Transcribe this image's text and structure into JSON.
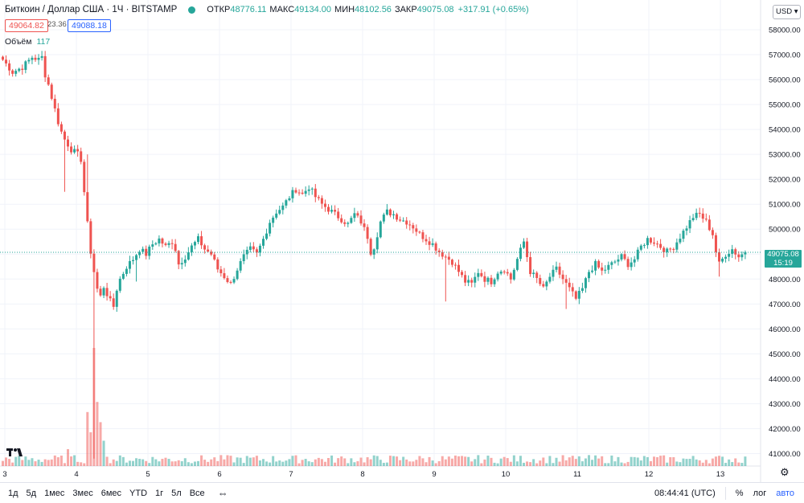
{
  "legend": {
    "symbol": "Биткоин / Доллар США · 1Ч · BITSTAMP",
    "status_color": "#26a69a",
    "open_label": "ОТКР",
    "open": "48776.11",
    "high_label": "МАКС",
    "high": "49134.00",
    "low_label": "МИН",
    "low": "48102.56",
    "close_label": "ЗАКР",
    "close": "49075.08",
    "change": "+317.91 (+0.65%)"
  },
  "bid": "49064.82",
  "spread": "23.36",
  "ask": "49088.18",
  "volume": {
    "label": "Объём",
    "value": "117"
  },
  "currency": "USD",
  "last_price": {
    "value": "49075.08",
    "countdown": "15:19"
  },
  "colors": {
    "up": "#26a69a",
    "down": "#ef5350",
    "bid": "#ef5350",
    "ask": "#2962ff"
  },
  "bottom_bar": {
    "ranges": [
      "1д",
      "5д",
      "1мес",
      "3мес",
      "6мес",
      "YTD",
      "1г",
      "5л",
      "Все"
    ],
    "time": "08:44:41 (UTC)",
    "percent": "%",
    "log": "лог",
    "auto": "авто"
  },
  "chart_data": {
    "type": "candlestick",
    "interval": "1H",
    "ylim": [
      40500,
      59000
    ],
    "y_ticks": [
      41000,
      42000,
      43000,
      44000,
      45000,
      46000,
      47000,
      48000,
      49000,
      50000,
      51000,
      52000,
      53000,
      54000,
      55000,
      56000,
      57000,
      58000
    ],
    "y_tick_labels": [
      "41000.00",
      "42000.00",
      "43000.00",
      "44000.00",
      "45000.00",
      "46000.00",
      "47000.00",
      "48000.00",
      "49000.00",
      "50000.00",
      "51000.00",
      "52000.00",
      "53000.00",
      "54000.00",
      "55000.00",
      "56000.00",
      "57000.00",
      "58000.00"
    ],
    "x_ticks": [
      {
        "label": "3",
        "day": 3
      },
      {
        "label": "4",
        "day": 4
      },
      {
        "label": "5",
        "day": 5
      },
      {
        "label": "6",
        "day": 6
      },
      {
        "label": "7",
        "day": 7
      },
      {
        "label": "8",
        "day": 8
      },
      {
        "label": "9",
        "day": 9
      },
      {
        "label": "10",
        "day": 10
      },
      {
        "label": "11",
        "day": 11
      },
      {
        "label": "12",
        "day": 12
      },
      {
        "label": "13",
        "day": 13
      }
    ],
    "last_price": 49075.08,
    "path": [
      [
        0,
        56800
      ],
      [
        3,
        56300
      ],
      [
        6,
        56500
      ],
      [
        9,
        56900
      ],
      [
        11,
        56800
      ],
      [
        12,
        56900
      ],
      [
        13,
        56200
      ],
      [
        14,
        55800
      ],
      [
        15,
        55300
      ],
      [
        16,
        54800
      ],
      [
        17,
        54300
      ],
      [
        18,
        53900
      ],
      [
        19,
        53600
      ],
      [
        20,
        53400
      ],
      [
        21,
        53200
      ],
      [
        22,
        53100
      ],
      [
        23,
        53000
      ],
      [
        24,
        52800
      ],
      [
        25,
        51500
      ],
      [
        26,
        50200
      ],
      [
        27,
        49100
      ],
      [
        28,
        48300
      ],
      [
        29,
        47600
      ],
      [
        30,
        47300
      ],
      [
        31,
        47700
      ],
      [
        32,
        47400
      ],
      [
        33,
        47100
      ],
      [
        34,
        46900
      ],
      [
        35,
        47600
      ],
      [
        36,
        48000
      ],
      [
        38,
        48500
      ],
      [
        40,
        48800
      ],
      [
        42,
        49200
      ],
      [
        44,
        49000
      ],
      [
        46,
        49400
      ],
      [
        48,
        49600
      ],
      [
        50,
        49300
      ],
      [
        52,
        49500
      ],
      [
        53,
        49200
      ],
      [
        54,
        48600
      ],
      [
        56,
        48900
      ],
      [
        58,
        49300
      ],
      [
        60,
        49600
      ],
      [
        62,
        49200
      ],
      [
        64,
        49000
      ],
      [
        66,
        48400
      ],
      [
        68,
        48100
      ],
      [
        70,
        47800
      ],
      [
        72,
        48400
      ],
      [
        74,
        48900
      ],
      [
        76,
        49200
      ],
      [
        78,
        49000
      ],
      [
        80,
        49600
      ],
      [
        82,
        50300
      ],
      [
        84,
        50700
      ],
      [
        86,
        50900
      ],
      [
        88,
        51300
      ],
      [
        90,
        51600
      ],
      [
        92,
        51400
      ],
      [
        94,
        51700
      ],
      [
        96,
        51300
      ],
      [
        98,
        51000
      ],
      [
        100,
        50800
      ],
      [
        102,
        50600
      ],
      [
        104,
        50400
      ],
      [
        106,
        50200
      ],
      [
        108,
        50600
      ],
      [
        110,
        50300
      ],
      [
        112,
        49700
      ],
      [
        113,
        49100
      ],
      [
        114,
        49300
      ],
      [
        116,
        50300
      ],
      [
        118,
        50700
      ],
      [
        120,
        50600
      ],
      [
        122,
        50400
      ],
      [
        124,
        50300
      ],
      [
        126,
        50100
      ],
      [
        128,
        49800
      ],
      [
        130,
        49600
      ],
      [
        132,
        49400
      ],
      [
        134,
        49100
      ],
      [
        136,
        48900
      ],
      [
        138,
        48700
      ],
      [
        140,
        48300
      ],
      [
        142,
        47900
      ],
      [
        144,
        47800
      ],
      [
        146,
        48300
      ],
      [
        148,
        48000
      ],
      [
        150,
        47900
      ],
      [
        152,
        48300
      ],
      [
        154,
        48400
      ],
      [
        156,
        48000
      ],
      [
        158,
        48800
      ],
      [
        160,
        49500
      ],
      [
        162,
        48300
      ],
      [
        164,
        48000
      ],
      [
        166,
        47600
      ],
      [
        168,
        48100
      ],
      [
        170,
        48400
      ],
      [
        172,
        48000
      ],
      [
        174,
        47600
      ],
      [
        176,
        47200
      ],
      [
        178,
        47600
      ],
      [
        180,
        48300
      ],
      [
        182,
        48600
      ],
      [
        184,
        48300
      ],
      [
        186,
        48500
      ],
      [
        188,
        48700
      ],
      [
        190,
        48900
      ],
      [
        192,
        48600
      ],
      [
        194,
        48800
      ],
      [
        196,
        49300
      ],
      [
        198,
        49600
      ],
      [
        200,
        49500
      ],
      [
        202,
        49300
      ],
      [
        204,
        49100
      ],
      [
        206,
        49300
      ],
      [
        208,
        49700
      ],
      [
        210,
        50100
      ],
      [
        212,
        50500
      ],
      [
        214,
        50600
      ],
      [
        216,
        50300
      ],
      [
        218,
        49800
      ],
      [
        219,
        49100
      ],
      [
        220,
        48600
      ],
      [
        222,
        49000
      ],
      [
        224,
        49200
      ],
      [
        226,
        48900
      ],
      [
        228,
        49075
      ]
    ],
    "spikes": [
      {
        "i": 19,
        "low": 51500
      },
      {
        "i": 26,
        "high": 53000
      },
      {
        "i": 28,
        "low": 40800
      },
      {
        "i": 41,
        "low": 47900
      },
      {
        "i": 136,
        "low": 47100
      },
      {
        "i": 173,
        "low": 46800
      },
      {
        "i": 220,
        "low": 48100
      }
    ],
    "volume": {
      "spikes": [
        {
          "i": 20,
          "value": 1.0
        },
        {
          "i": 26,
          "value": 3.2
        },
        {
          "i": 27,
          "value": 2.0
        },
        {
          "i": 28,
          "value": 7.0
        },
        {
          "i": 29,
          "value": 3.8
        },
        {
          "i": 30,
          "value": 2.6
        },
        {
          "i": 31,
          "value": 1.5
        }
      ],
      "base": 0.45
    }
  }
}
